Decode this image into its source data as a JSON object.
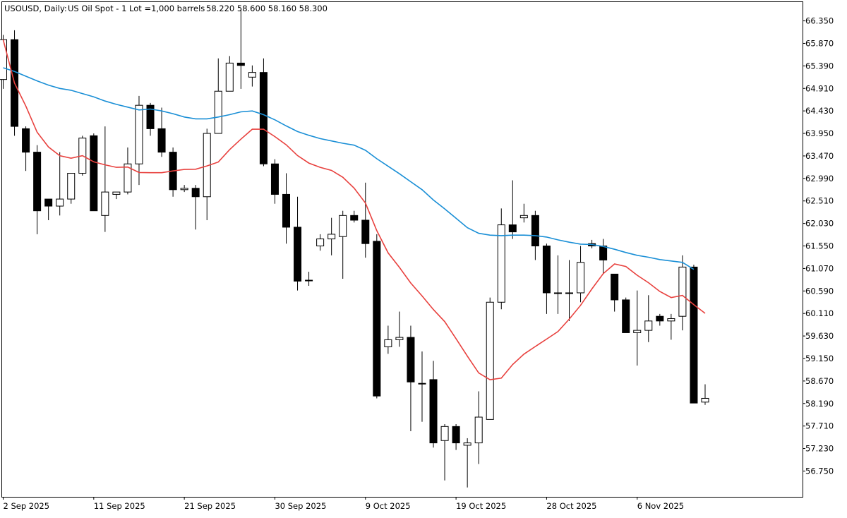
{
  "header": {
    "symbol": "USOUSD, Daily:",
    "description": "US Oil Spot - 1 Lot =1,000 barrels",
    "ohlc": "58.220 58.600 58.160 58.300"
  },
  "colors": {
    "background": "#ffffff",
    "frame": "#000000",
    "bull_body": "#ffffff",
    "bear_body": "#000000",
    "ma_fast": "#1a8fd6",
    "ma_slow": "#e8413e"
  },
  "chart_data": {
    "type": "candlestick",
    "title": "USOUSD, Daily:  US Oil Spot - 1 Lot =1,000 barrels  58.220 58.600 58.160 58.300",
    "y_ticks": [
      66.35,
      65.87,
      65.39,
      64.91,
      64.43,
      63.95,
      63.47,
      62.99,
      62.51,
      62.03,
      61.55,
      61.07,
      60.59,
      60.11,
      59.63,
      59.15,
      58.67,
      58.19,
      57.71,
      57.23,
      56.75
    ],
    "y_tick_labels": [
      "66.350",
      "65.870",
      "65.390",
      "64.910",
      "64.430",
      "63.950",
      "63.470",
      "62.990",
      "62.510",
      "62.030",
      "61.550",
      "61.070",
      "60.590",
      "60.110",
      "59.630",
      "59.150",
      "58.670",
      "58.190",
      "57.710",
      "57.230",
      "56.750"
    ],
    "x_labels": [
      {
        "index": 0,
        "label": "2 Sep 2025"
      },
      {
        "index": 8,
        "label": "11 Sep 2025"
      },
      {
        "index": 16,
        "label": "21 Sep 2025"
      },
      {
        "index": 24,
        "label": "30 Sep 2025"
      },
      {
        "index": 32,
        "label": "9 Oct 2025"
      },
      {
        "index": 40,
        "label": "19 Oct 2025"
      },
      {
        "index": 48,
        "label": "28 Oct 2025"
      },
      {
        "index": 56,
        "label": "6 Nov 2025"
      }
    ],
    "ylim": [
      56.2,
      66.75
    ],
    "candles": [
      {
        "o": 65.1,
        "h": 66.05,
        "l": 64.9,
        "c": 65.95
      },
      {
        "o": 65.95,
        "h": 66.15,
        "l": 63.9,
        "c": 64.1
      },
      {
        "o": 64.05,
        "h": 64.1,
        "l": 63.15,
        "c": 63.55
      },
      {
        "o": 63.55,
        "h": 63.7,
        "l": 61.8,
        "c": 62.3
      },
      {
        "o": 62.55,
        "h": 62.55,
        "l": 62.1,
        "c": 62.4
      },
      {
        "o": 62.4,
        "h": 63.55,
        "l": 62.2,
        "c": 62.55
      },
      {
        "o": 62.55,
        "h": 63.1,
        "l": 62.45,
        "c": 63.1
      },
      {
        "o": 63.1,
        "h": 63.9,
        "l": 63.05,
        "c": 63.85
      },
      {
        "o": 63.9,
        "h": 63.95,
        "l": 62.3,
        "c": 62.3
      },
      {
        "o": 62.2,
        "h": 64.1,
        "l": 61.85,
        "c": 62.7
      },
      {
        "o": 62.65,
        "h": 62.7,
        "l": 62.55,
        "c": 62.7
      },
      {
        "o": 62.7,
        "h": 63.65,
        "l": 62.65,
        "c": 63.3
      },
      {
        "o": 63.3,
        "h": 64.75,
        "l": 62.85,
        "c": 64.55
      },
      {
        "o": 64.55,
        "h": 64.6,
        "l": 63.9,
        "c": 64.05
      },
      {
        "o": 64.05,
        "h": 64.5,
        "l": 63.45,
        "c": 63.55
      },
      {
        "o": 63.55,
        "h": 63.65,
        "l": 62.6,
        "c": 62.75
      },
      {
        "o": 62.75,
        "h": 62.85,
        "l": 62.7,
        "c": 62.78
      },
      {
        "o": 62.78,
        "h": 62.85,
        "l": 61.9,
        "c": 62.6
      },
      {
        "o": 62.6,
        "h": 64.05,
        "l": 62.1,
        "c": 63.95
      },
      {
        "o": 63.95,
        "h": 65.55,
        "l": 63.95,
        "c": 64.85
      },
      {
        "o": 64.85,
        "h": 65.6,
        "l": 64.85,
        "c": 65.45
      },
      {
        "o": 65.45,
        "h": 66.6,
        "l": 64.9,
        "c": 65.4
      },
      {
        "o": 65.15,
        "h": 65.4,
        "l": 64.95,
        "c": 65.25
      },
      {
        "o": 65.25,
        "h": 65.55,
        "l": 63.25,
        "c": 63.3
      },
      {
        "o": 63.3,
        "h": 63.4,
        "l": 62.45,
        "c": 62.65
      },
      {
        "o": 62.65,
        "h": 63.1,
        "l": 61.6,
        "c": 61.95
      },
      {
        "o": 61.95,
        "h": 62.6,
        "l": 60.6,
        "c": 60.8
      },
      {
        "o": 60.82,
        "h": 61.0,
        "l": 60.7,
        "c": 60.82
      },
      {
        "o": 61.55,
        "h": 61.8,
        "l": 61.45,
        "c": 61.7
      },
      {
        "o": 61.7,
        "h": 62.15,
        "l": 61.35,
        "c": 61.8
      },
      {
        "o": 61.75,
        "h": 62.3,
        "l": 60.85,
        "c": 62.2
      },
      {
        "o": 62.2,
        "h": 62.3,
        "l": 62.05,
        "c": 62.1
      },
      {
        "o": 62.1,
        "h": 62.9,
        "l": 61.3,
        "c": 61.6
      },
      {
        "o": 61.65,
        "h": 61.8,
        "l": 58.3,
        "c": 58.35
      },
      {
        "o": 59.4,
        "h": 59.85,
        "l": 59.25,
        "c": 59.55
      },
      {
        "o": 59.55,
        "h": 60.15,
        "l": 59.4,
        "c": 59.6
      },
      {
        "o": 59.6,
        "h": 59.85,
        "l": 57.6,
        "c": 58.65
      },
      {
        "o": 58.62,
        "h": 59.3,
        "l": 57.8,
        "c": 58.62
      },
      {
        "o": 58.7,
        "h": 59.1,
        "l": 57.25,
        "c": 57.35
      },
      {
        "o": 57.4,
        "h": 57.75,
        "l": 56.55,
        "c": 57.7
      },
      {
        "o": 57.7,
        "h": 57.75,
        "l": 57.2,
        "c": 57.35
      },
      {
        "o": 57.3,
        "h": 57.45,
        "l": 56.4,
        "c": 57.35
      },
      {
        "o": 57.35,
        "h": 58.45,
        "l": 56.9,
        "c": 57.9
      },
      {
        "o": 57.85,
        "h": 60.45,
        "l": 57.85,
        "c": 60.35
      },
      {
        "o": 60.35,
        "h": 62.35,
        "l": 60.2,
        "c": 62.0
      },
      {
        "o": 62.0,
        "h": 62.95,
        "l": 61.7,
        "c": 61.85
      },
      {
        "o": 62.15,
        "h": 62.45,
        "l": 62.05,
        "c": 62.2
      },
      {
        "o": 62.2,
        "h": 62.3,
        "l": 61.25,
        "c": 61.55
      },
      {
        "o": 61.55,
        "h": 61.6,
        "l": 60.1,
        "c": 60.55
      },
      {
        "o": 60.55,
        "h": 61.35,
        "l": 60.1,
        "c": 60.55
      },
      {
        "o": 60.55,
        "h": 61.25,
        "l": 59.95,
        "c": 60.55
      },
      {
        "o": 60.55,
        "h": 61.55,
        "l": 60.35,
        "c": 61.2
      },
      {
        "o": 61.6,
        "h": 61.68,
        "l": 61.5,
        "c": 61.55
      },
      {
        "o": 61.55,
        "h": 61.7,
        "l": 60.95,
        "c": 61.25
      },
      {
        "o": 60.95,
        "h": 60.95,
        "l": 60.15,
        "c": 60.4
      },
      {
        "o": 60.4,
        "h": 60.45,
        "l": 59.7,
        "c": 59.7
      },
      {
        "o": 59.7,
        "h": 60.6,
        "l": 59.0,
        "c": 59.75
      },
      {
        "o": 59.75,
        "h": 60.5,
        "l": 59.5,
        "c": 59.95
      },
      {
        "o": 60.05,
        "h": 60.1,
        "l": 59.85,
        "c": 59.95
      },
      {
        "o": 59.95,
        "h": 60.1,
        "l": 59.55,
        "c": 60.0
      },
      {
        "o": 60.05,
        "h": 61.35,
        "l": 59.75,
        "c": 61.1
      },
      {
        "o": 61.1,
        "h": 61.15,
        "l": 58.2,
        "c": 58.2
      },
      {
        "o": 58.22,
        "h": 58.6,
        "l": 58.16,
        "c": 58.3
      }
    ],
    "ma_fast": [
      65.35,
      65.27,
      65.17,
      65.07,
      64.98,
      64.91,
      64.87,
      64.8,
      64.73,
      64.64,
      64.57,
      64.51,
      64.45,
      64.47,
      64.43,
      64.37,
      64.3,
      64.26,
      64.26,
      64.3,
      64.35,
      64.41,
      64.43,
      64.35,
      64.24,
      64.11,
      63.99,
      63.91,
      63.84,
      63.79,
      63.74,
      63.7,
      63.59,
      63.41,
      63.25,
      63.09,
      62.92,
      62.75,
      62.53,
      62.34,
      62.14,
      61.94,
      61.82,
      61.78,
      61.77,
      61.78,
      61.78,
      61.77,
      61.74,
      61.68,
      61.63,
      61.59,
      61.58,
      61.54,
      61.48,
      61.41,
      61.35,
      61.31,
      61.26,
      61.23,
      61.2,
      61.05
    ]
  }
}
